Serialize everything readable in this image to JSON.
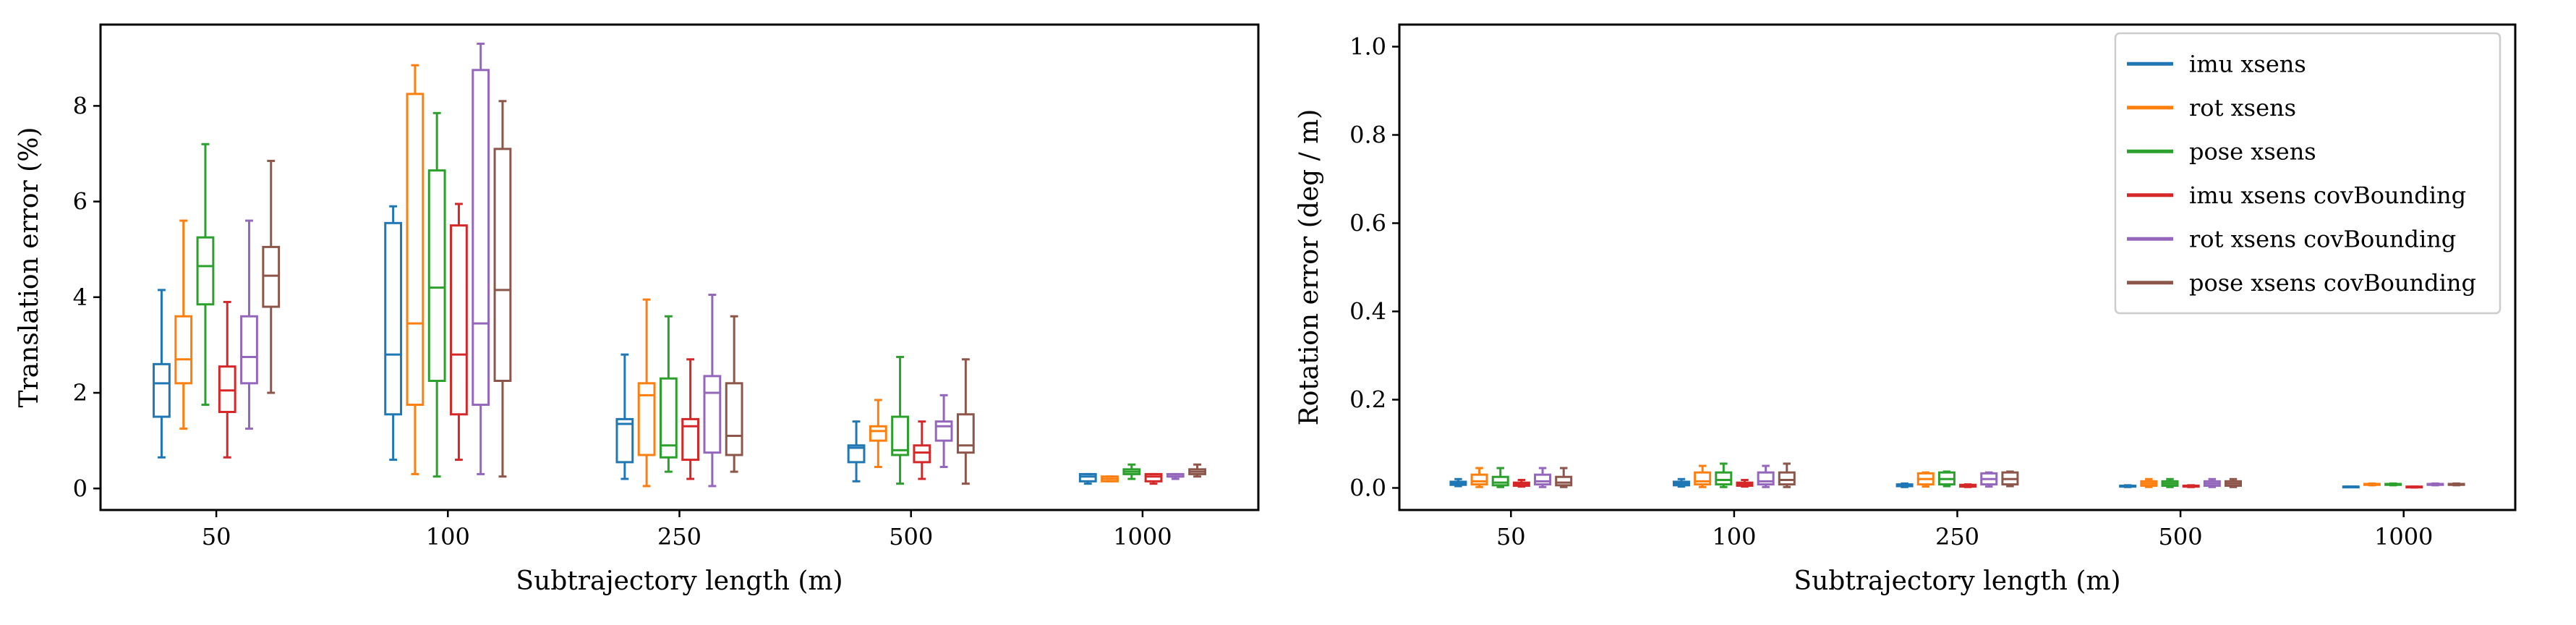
{
  "colors": {
    "imu_xsens": "#1f77b4",
    "rot_xsens": "#ff7f0e",
    "pose_xsens": "#2ca02c",
    "imu_xsens_covBounding": "#d62728",
    "rot_xsens_covBounding": "#9467bd",
    "pose_xsens_covBounding": "#8c564b"
  },
  "chart_data": [
    {
      "type": "box",
      "xlabel": "Subtrajectory length (m)",
      "ylabel": "Translation error (%)",
      "categories": [
        "50",
        "100",
        "250",
        "500",
        "1000"
      ],
      "ylim": [
        -0.45,
        9.7
      ],
      "yticks": [
        "0",
        "2",
        "4",
        "6",
        "8"
      ],
      "yticks_values": [
        0,
        2,
        4,
        6,
        8
      ],
      "grid": false,
      "legend": null,
      "series": [
        {
          "name": "imu xsens",
          "color_key": "imu_xsens",
          "boxes": [
            {
              "whislo": 0.65,
              "q1": 1.5,
              "med": 2.2,
              "q3": 2.6,
              "whishi": 4.15
            },
            {
              "whislo": 0.6,
              "q1": 1.55,
              "med": 2.8,
              "q3": 5.55,
              "whishi": 5.9
            },
            {
              "whislo": 0.2,
              "q1": 0.55,
              "med": 1.35,
              "q3": 1.45,
              "whishi": 2.8
            },
            {
              "whislo": 0.15,
              "q1": 0.55,
              "med": 0.85,
              "q3": 0.9,
              "whishi": 1.4
            },
            {
              "whislo": 0.1,
              "q1": 0.15,
              "med": 0.25,
              "q3": 0.3,
              "whishi": 0.3
            }
          ]
        },
        {
          "name": "rot xsens",
          "color_key": "rot_xsens",
          "boxes": [
            {
              "whislo": 1.25,
              "q1": 2.2,
              "med": 2.7,
              "q3": 3.6,
              "whishi": 5.6
            },
            {
              "whislo": 0.3,
              "q1": 1.75,
              "med": 3.45,
              "q3": 8.25,
              "whishi": 8.85
            },
            {
              "whislo": 0.05,
              "q1": 0.7,
              "med": 1.95,
              "q3": 2.2,
              "whishi": 3.95
            },
            {
              "whislo": 0.45,
              "q1": 1.0,
              "med": 1.2,
              "q3": 1.3,
              "whishi": 1.85
            },
            {
              "whislo": 0.15,
              "q1": 0.15,
              "med": 0.2,
              "q3": 0.25,
              "whishi": 0.25
            }
          ]
        },
        {
          "name": "pose xsens",
          "color_key": "pose_xsens",
          "boxes": [
            {
              "whislo": 1.75,
              "q1": 3.85,
              "med": 4.65,
              "q3": 5.25,
              "whishi": 7.2
            },
            {
              "whislo": 0.25,
              "q1": 2.25,
              "med": 4.2,
              "q3": 6.65,
              "whishi": 7.85
            },
            {
              "whislo": 0.35,
              "q1": 0.65,
              "med": 0.9,
              "q3": 2.3,
              "whishi": 3.6
            },
            {
              "whislo": 0.1,
              "q1": 0.7,
              "med": 0.8,
              "q3": 1.5,
              "whishi": 2.75
            },
            {
              "whislo": 0.2,
              "q1": 0.3,
              "med": 0.35,
              "q3": 0.4,
              "whishi": 0.5
            }
          ]
        },
        {
          "name": "imu xsens covBounding",
          "color_key": "imu_xsens_covBounding",
          "boxes": [
            {
              "whislo": 0.65,
              "q1": 1.6,
              "med": 2.05,
              "q3": 2.55,
              "whishi": 3.9
            },
            {
              "whislo": 0.6,
              "q1": 1.55,
              "med": 2.8,
              "q3": 5.5,
              "whishi": 5.95
            },
            {
              "whislo": 0.2,
              "q1": 0.6,
              "med": 1.3,
              "q3": 1.45,
              "whishi": 2.7
            },
            {
              "whislo": 0.2,
              "q1": 0.55,
              "med": 0.75,
              "q3": 0.9,
              "whishi": 1.4
            },
            {
              "whislo": 0.1,
              "q1": 0.15,
              "med": 0.25,
              "q3": 0.3,
              "whishi": 0.3
            }
          ]
        },
        {
          "name": "rot xsens covBounding",
          "color_key": "rot_xsens_covBounding",
          "boxes": [
            {
              "whislo": 1.25,
              "q1": 2.2,
              "med": 2.75,
              "q3": 3.6,
              "whishi": 5.6
            },
            {
              "whislo": 0.3,
              "q1": 1.75,
              "med": 3.45,
              "q3": 8.75,
              "whishi": 9.3
            },
            {
              "whislo": 0.05,
              "q1": 0.75,
              "med": 2.0,
              "q3": 2.35,
              "whishi": 4.05
            },
            {
              "whislo": 0.45,
              "q1": 1.0,
              "med": 1.3,
              "q3": 1.4,
              "whishi": 1.95
            },
            {
              "whislo": 0.2,
              "q1": 0.25,
              "med": 0.25,
              "q3": 0.3,
              "whishi": 0.3
            }
          ]
        },
        {
          "name": "pose xsens covBounding",
          "color_key": "pose_xsens_covBounding",
          "boxes": [
            {
              "whislo": 2.0,
              "q1": 3.8,
              "med": 4.45,
              "q3": 5.05,
              "whishi": 6.85
            },
            {
              "whislo": 0.25,
              "q1": 2.25,
              "med": 4.15,
              "q3": 7.1,
              "whishi": 8.1
            },
            {
              "whislo": 0.35,
              "q1": 0.7,
              "med": 1.1,
              "q3": 2.2,
              "whishi": 3.6
            },
            {
              "whislo": 0.1,
              "q1": 0.75,
              "med": 0.9,
              "q3": 1.55,
              "whishi": 2.7
            },
            {
              "whislo": 0.25,
              "q1": 0.3,
              "med": 0.35,
              "q3": 0.4,
              "whishi": 0.5
            }
          ]
        }
      ]
    },
    {
      "type": "box",
      "xlabel": "Subtrajectory length (m)",
      "ylabel": "Rotation error (deg / m)",
      "categories": [
        "50",
        "100",
        "250",
        "500",
        "1000"
      ],
      "ylim": [
        -0.05,
        1.05
      ],
      "yticks": [
        "0.0",
        "0.2",
        "0.4",
        "0.6",
        "0.8",
        "1.0"
      ],
      "yticks_values": [
        0,
        0.2,
        0.4,
        0.6,
        0.8,
        1.0
      ],
      "grid": false,
      "legend": "top-right",
      "series": [
        {
          "name": "imu xsens",
          "color_key": "imu_xsens",
          "boxes": [
            {
              "whislo": 0.004,
              "q1": 0.007,
              "med": 0.01,
              "q3": 0.014,
              "whishi": 0.02
            },
            {
              "whislo": 0.003,
              "q1": 0.006,
              "med": 0.01,
              "q3": 0.014,
              "whishi": 0.02
            },
            {
              "whislo": 0.002,
              "q1": 0.004,
              "med": 0.006,
              "q3": 0.008,
              "whishi": 0.01
            },
            {
              "whislo": 0.002,
              "q1": 0.003,
              "med": 0.004,
              "q3": 0.005,
              "whishi": 0.006
            },
            {
              "whislo": 0.002,
              "q1": 0.002,
              "med": 0.003,
              "q3": 0.003,
              "whishi": 0.003
            }
          ]
        },
        {
          "name": "rot xsens",
          "color_key": "rot_xsens",
          "boxes": [
            {
              "whislo": 0.002,
              "q1": 0.008,
              "med": 0.015,
              "q3": 0.03,
              "whishi": 0.045
            },
            {
              "whislo": 0.002,
              "q1": 0.008,
              "med": 0.015,
              "q3": 0.035,
              "whishi": 0.05
            },
            {
              "whislo": 0.003,
              "q1": 0.008,
              "med": 0.02,
              "q3": 0.033,
              "whishi": 0.035
            },
            {
              "whislo": 0.002,
              "q1": 0.005,
              "med": 0.01,
              "q3": 0.015,
              "whishi": 0.02
            },
            {
              "whislo": 0.006,
              "q1": 0.007,
              "med": 0.008,
              "q3": 0.009,
              "whishi": 0.01
            }
          ]
        },
        {
          "name": "pose xsens",
          "color_key": "pose_xsens",
          "boxes": [
            {
              "whislo": 0.002,
              "q1": 0.006,
              "med": 0.012,
              "q3": 0.025,
              "whishi": 0.045
            },
            {
              "whislo": 0.002,
              "q1": 0.008,
              "med": 0.018,
              "q3": 0.035,
              "whishi": 0.055
            },
            {
              "whislo": 0.004,
              "q1": 0.008,
              "med": 0.02,
              "q3": 0.035,
              "whishi": 0.037
            },
            {
              "whislo": 0.002,
              "q1": 0.005,
              "med": 0.01,
              "q3": 0.015,
              "whishi": 0.02
            },
            {
              "whislo": 0.006,
              "q1": 0.007,
              "med": 0.008,
              "q3": 0.009,
              "whishi": 0.01
            }
          ]
        },
        {
          "name": "imu xsens covBounding",
          "color_key": "imu_xsens_covBounding",
          "boxes": [
            {
              "whislo": 0.003,
              "q1": 0.005,
              "med": 0.008,
              "q3": 0.012,
              "whishi": 0.018
            },
            {
              "whislo": 0.003,
              "q1": 0.005,
              "med": 0.008,
              "q3": 0.012,
              "whishi": 0.018
            },
            {
              "whislo": 0.002,
              "q1": 0.003,
              "med": 0.005,
              "q3": 0.007,
              "whishi": 0.008
            },
            {
              "whislo": 0.002,
              "q1": 0.003,
              "med": 0.004,
              "q3": 0.005,
              "whishi": 0.006
            },
            {
              "whislo": 0.001,
              "q1": 0.002,
              "med": 0.002,
              "q3": 0.003,
              "whishi": 0.003
            }
          ]
        },
        {
          "name": "rot xsens covBounding",
          "color_key": "rot_xsens_covBounding",
          "boxes": [
            {
              "whislo": 0.002,
              "q1": 0.008,
              "med": 0.015,
              "q3": 0.03,
              "whishi": 0.045
            },
            {
              "whislo": 0.002,
              "q1": 0.008,
              "med": 0.015,
              "q3": 0.035,
              "whishi": 0.05
            },
            {
              "whislo": 0.003,
              "q1": 0.008,
              "med": 0.02,
              "q3": 0.033,
              "whishi": 0.035
            },
            {
              "whislo": 0.002,
              "q1": 0.005,
              "med": 0.01,
              "q3": 0.015,
              "whishi": 0.02
            },
            {
              "whislo": 0.006,
              "q1": 0.007,
              "med": 0.008,
              "q3": 0.009,
              "whishi": 0.01
            }
          ]
        },
        {
          "name": "pose xsens covBounding",
          "color_key": "pose_xsens_covBounding",
          "boxes": [
            {
              "whislo": 0.002,
              "q1": 0.006,
              "med": 0.012,
              "q3": 0.025,
              "whishi": 0.045
            },
            {
              "whislo": 0.002,
              "q1": 0.008,
              "med": 0.018,
              "q3": 0.035,
              "whishi": 0.055
            },
            {
              "whislo": 0.004,
              "q1": 0.008,
              "med": 0.02,
              "q3": 0.035,
              "whishi": 0.037
            },
            {
              "whislo": 0.002,
              "q1": 0.005,
              "med": 0.01,
              "q3": 0.015,
              "whishi": 0.02
            },
            {
              "whislo": 0.006,
              "q1": 0.007,
              "med": 0.008,
              "q3": 0.009,
              "whishi": 0.01
            }
          ]
        }
      ]
    }
  ]
}
